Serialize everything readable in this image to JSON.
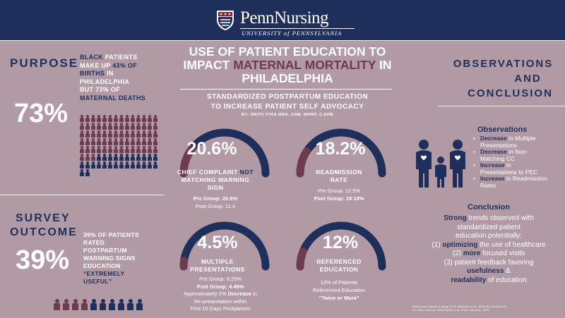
{
  "header": {
    "logo_name": "PennNursing",
    "logo_sub": "UNIVERSITY of PENNSYLVANIA"
  },
  "title": {
    "line1": "USE OF PATIENT EDUCATION TO",
    "line2_a": "IMPACT ",
    "line2_b": "MATERNAL MORTALITY",
    "line2_c": " IN",
    "line3": "PHILADELPHIA",
    "subtitle1": "STANDARDIZED POSTPARTUM EDUCATION",
    "subtitle2": "TO INCREASE PATIENT SELF ADVOCACY",
    "byline": "BY: SRUTI VYAS MSN, CNM, WHNP, C-EFM"
  },
  "purpose": {
    "title": "PURPOSE",
    "big": "73%",
    "t1": "BLACK",
    "t2": " PATIENTS",
    "t3": "MAKE UP ",
    "t4": "43% OF",
    "t5": "BIRTHS",
    "t6": " IN",
    "t7": "PHILADELPHIA",
    "t8": "BUT 73% OF",
    "t9": "MATERNAL DEATHS"
  },
  "survey": {
    "title1": "SURVEY",
    "title2": "OUTCOME",
    "big": "39%",
    "t1": "39% OF PATIENTS",
    "t2": "RATED",
    "t3": "POSTPARTUM",
    "t4": "WARNING SIGNS",
    "t5": "EDUCATION",
    "t6": "“EXTREMELY",
    "t7": "USEFUL”"
  },
  "stats": [
    {
      "value": "20.6%",
      "fill": 0.206,
      "label1a": "CHIEF COMPLAINT ",
      "label1b": "NOT",
      "label2": "MATCHING WARNING",
      "label3": "SIGN",
      "d1": "Pre Group: 20.6%",
      "d2": "Post Group: 11.4",
      "d3": "",
      "d4": ""
    },
    {
      "value": "18.2%",
      "fill": 0.182,
      "label1a": "READMISSION",
      "label1b": "",
      "label2": "RATE",
      "label3": "",
      "d1": "Pre Group: 12.5%",
      "d2": "Post Group: 18.18%",
      "d3": "",
      "d4": ""
    },
    {
      "value": "4.5%",
      "fill": 0.045,
      "label1a": "MULTIPLE",
      "label1b": "",
      "label2": "PRESENTATIONS",
      "label3": "",
      "d1": "Pre Group: 6.25%",
      "d2": "Post Group: 4.45%",
      "d3a": "Approximately 2% ",
      "d3b": "Decrease",
      "d3c": " in",
      "d4": "Re-presentation within",
      "d5": "First 10 Days Postpartum"
    },
    {
      "value": "12%",
      "fill": 0.12,
      "label1a": "REFERENCED",
      "label1b": "",
      "label2": "EDUCATION",
      "label3": "",
      "d1": "12% of Patients",
      "d2": "Referenced Education",
      "d3": "“Twice or More”",
      "d4": ""
    }
  ],
  "observations": {
    "title1": "OBSERVATIONS",
    "title2": "AND",
    "title3": "CONCLUSION",
    "obs_heading": "Observations",
    "items": [
      {
        "b": "Decrease",
        "r": " in Multiple",
        "r2": "Presentations"
      },
      {
        "b": "Decrease",
        "r": " in Non-",
        "r2": "Matching CC"
      },
      {
        "b": "Increase",
        "r": " in",
        "r2": "Presentations to PEC"
      },
      {
        "b": "Increase",
        "r": " in Readmission",
        "r2": "Rates"
      }
    ],
    "conc_heading": "Conclusion",
    "c1a": "Strong",
    "c1b": " trends observed with",
    "c2": "standardized patient",
    "c3": "education potentially:",
    "c4a": "(1) ",
    "c4b": "optimizing",
    "c4c": " the use of healthcare",
    "c5a": "(2) ",
    "c5b": "more",
    "c5c": " focused visits",
    "c6": "(3) patient feedback favoring",
    "c7a": "usefulness",
    "c7b": " &",
    "c8a": "readability",
    "c8b": " of education",
    "refs1": "References: Adams & Young, 2022; Barnstein et al., 2019; de Los Reyes et",
    "refs2": "al., 2022; Liu et al., 2023; Mehta et al., 2020; Oak et al., 2023"
  },
  "colors": {
    "navy": "#1f2f5c",
    "maroon": "#6e3a4f",
    "bg": "#b29aa5",
    "arc_track": "#1f2f5c",
    "arc_fill": "#6e3a4f"
  }
}
